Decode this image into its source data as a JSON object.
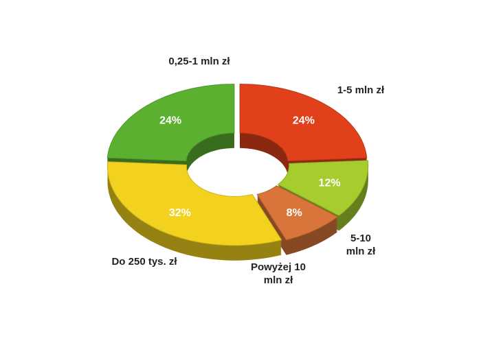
{
  "chart_data": {
    "type": "pie",
    "categories": [
      "0,25-1 mln zł",
      "1-5 mln zł",
      "5-10 mln zł",
      "Powyżej 10 mln zł",
      "Do 250 tys. zł"
    ],
    "values": [
      24,
      24,
      12,
      8,
      32
    ],
    "value_labels": [
      "24%",
      "24%",
      "12%",
      "8%",
      "32%"
    ],
    "colors": [
      "#5cb030",
      "#e0401a",
      "#a6cc2e",
      "#d9743a",
      "#f2d21e"
    ]
  }
}
